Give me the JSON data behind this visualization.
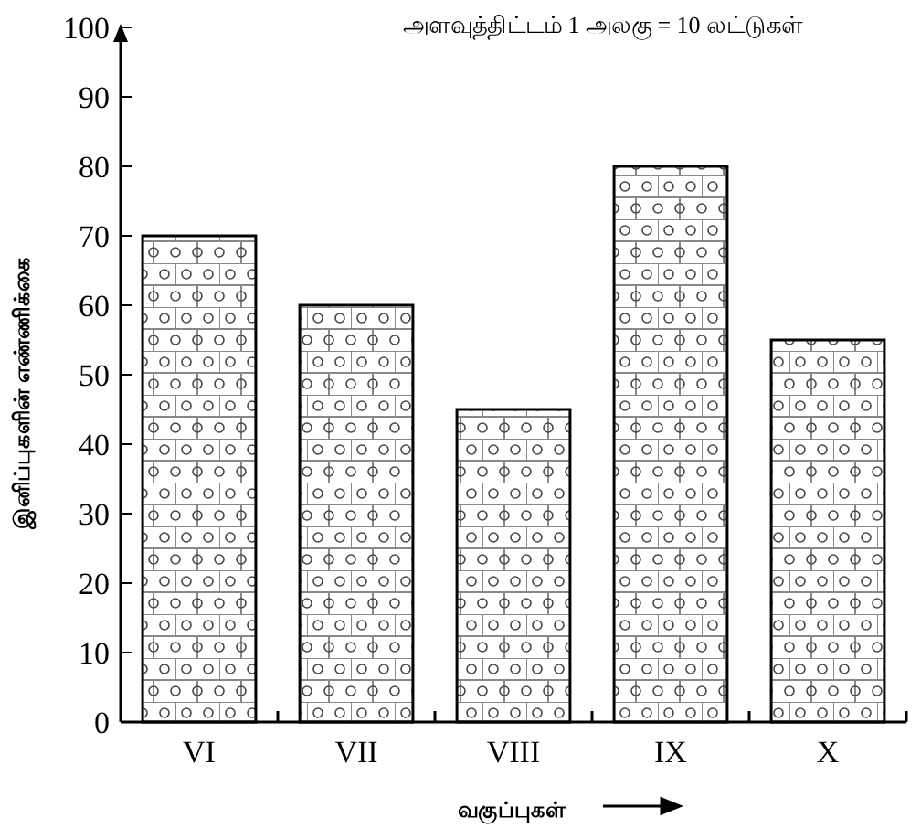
{
  "chart_data": {
    "type": "bar",
    "title": "அளவுத்திட்டம் 1 அலகு = 10 லட்டுகள்",
    "xlabel": "வகுப்புகள்",
    "ylabel": "இனிப்புகளின் எண்ணிக்கை",
    "categories": [
      "VI",
      "VII",
      "VIII",
      "IX",
      "X"
    ],
    "values": [
      70,
      60,
      45,
      80,
      55
    ],
    "ylim": [
      0,
      100
    ],
    "yticks": [
      0,
      10,
      20,
      30,
      40,
      50,
      60,
      70,
      80,
      90,
      100
    ],
    "grid": false
  }
}
